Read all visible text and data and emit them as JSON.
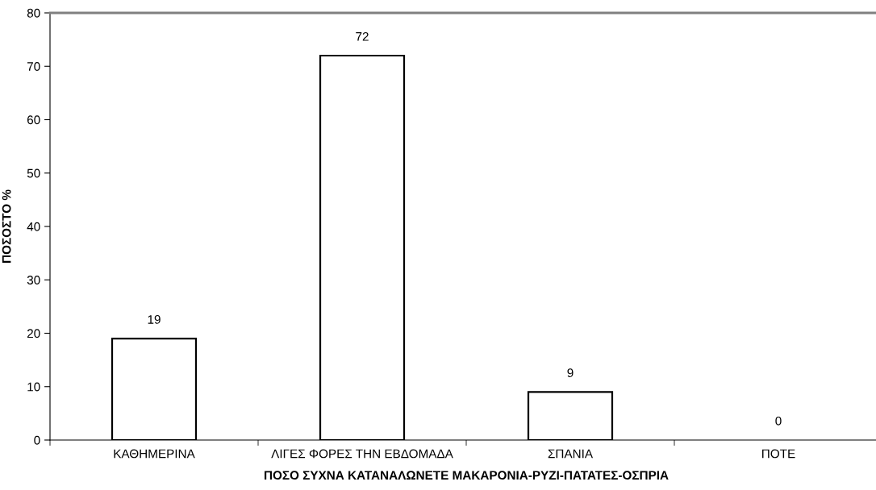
{
  "chart_data": {
    "type": "bar",
    "xlabel": "ΠΟΣΟ ΣΥΧΝΑ ΚΑΤΑΝΑΛΩΝΕΤΕ ΜΑΚΑΡΟΝΙΑ-ΡΥΖΙ-ΠΑΤΑΤΕΣ-ΟΣΠΡΙΑ",
    "ylabel": "ΠΟΣΟΣΤΟ %",
    "categories": [
      "ΚΑΘΗΜΕΡΙΝΑ",
      "ΛΙΓΕΣ ΦΟΡΕΣ ΤΗΝ ΕΒΔΟΜΑΔΑ",
      "ΣΠΑΝΙΑ",
      "ΠΟΤΕ"
    ],
    "values": [
      19,
      72,
      9,
      0
    ],
    "color": "#ffffff",
    "ylim": [
      0,
      80
    ],
    "yticks": [
      0,
      10,
      20,
      30,
      40,
      50,
      60,
      70,
      80
    ],
    "data_labels": true
  }
}
